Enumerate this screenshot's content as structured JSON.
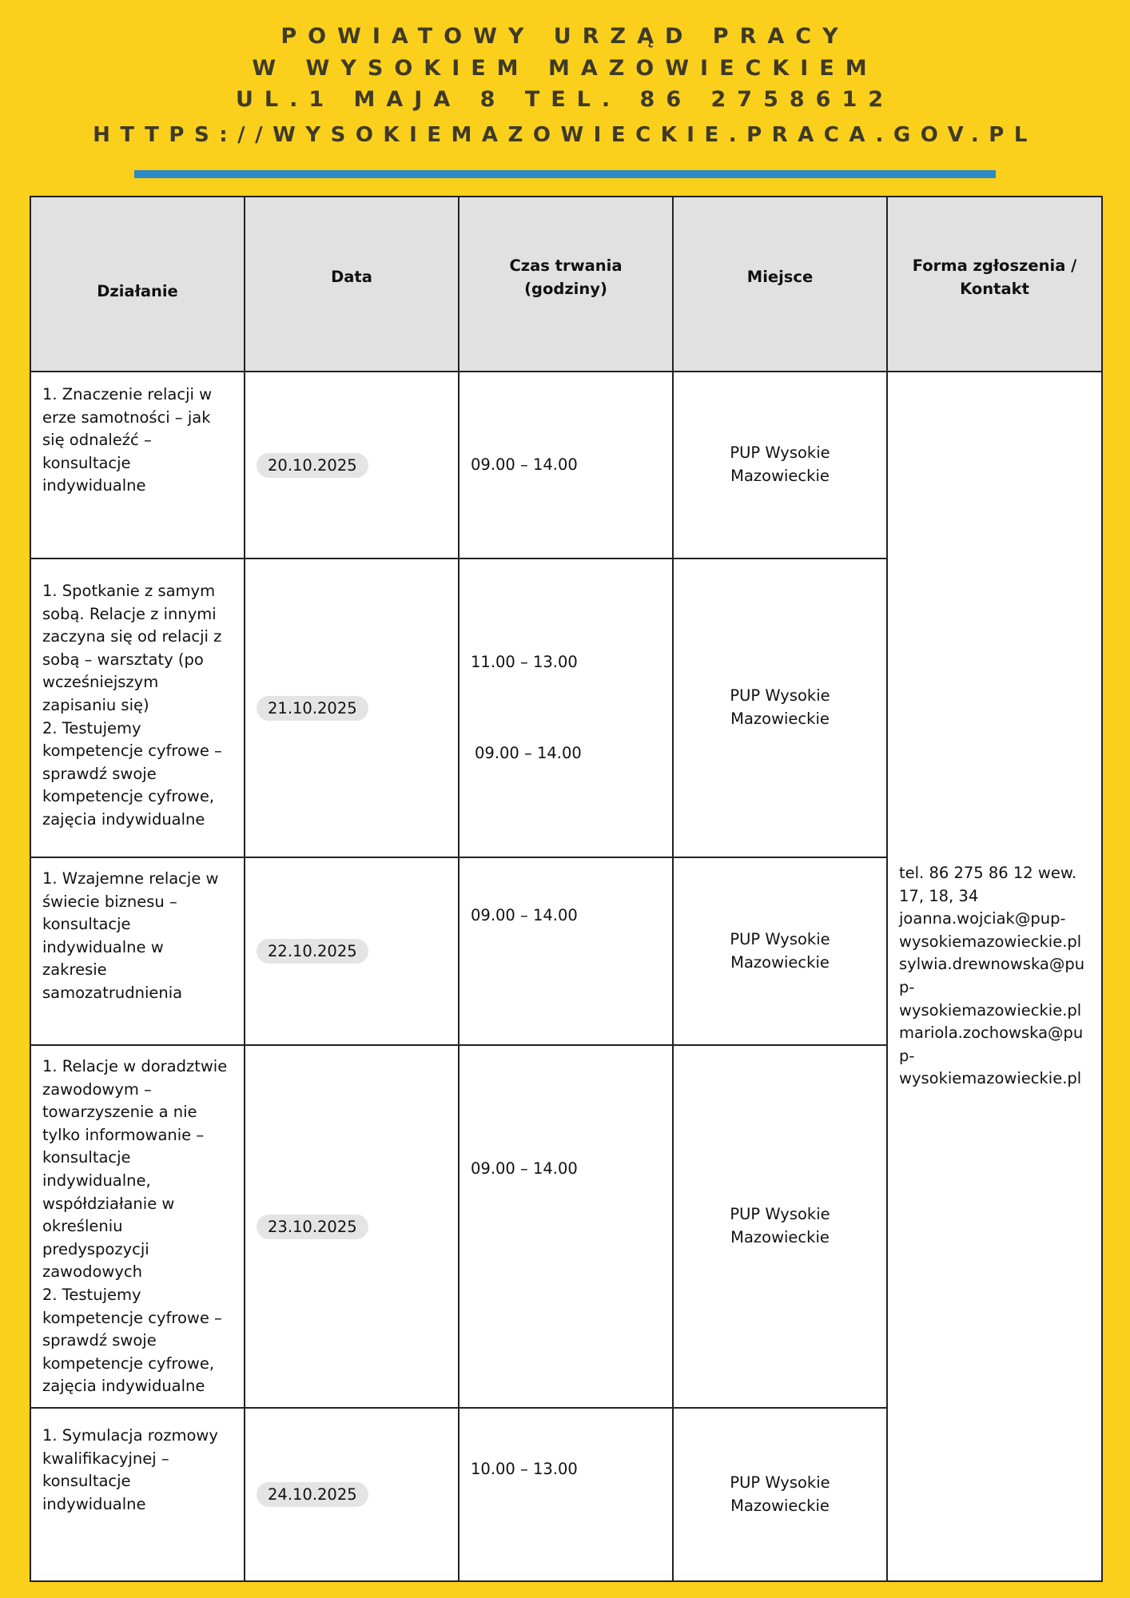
{
  "header": {
    "line1": "POWIATOWY URZĄD PRACY",
    "line2": "W WYSOKIEM MAZOWIECKIEM",
    "line3": "UL.1 MAJA 8 TEL. 86 2758612",
    "line4": "HTTPS://WYSOKIEMAZOWIECKIE.PRACA.GOV.PL"
  },
  "colors": {
    "background": "#fbd01c",
    "accent_bar": "#2b8ac7",
    "header_cell": "#e1e1e1"
  },
  "table": {
    "columns": [
      "Działanie",
      "Data",
      "Czas trwania\n(godziny)",
      "Miejsce",
      "Forma zgłoszenia /\nKontakt"
    ],
    "contact": "tel. 86 275 86 12 wew.\n17, 18, 34\njoanna.wojciak@pup-\nwysokiemazowieckie.pl\nsylwia.drewnowska@pu\np-\nwysokiemazowieckie.pl\nmariola.zochowska@pu\np-\nwysokiemazowieckie.pl",
    "rows": [
      {
        "action": "1. Znaczenie relacji w\nerze samotności – jak\nsię odnaleźć –\nkonsultacje\nindywidualne",
        "date": "20.10.2025",
        "time": "09.00 – 14.00",
        "time2": "",
        "place": "PUP Wysokie\nMazowieckie"
      },
      {
        "action": "1. Spotkanie z samym\nsobą. Relacje z innymi\nzaczyna się od relacji z\nsobą – warsztaty (po\nwcześniejszym\nzapisaniu się)\n2. Testujemy\nkompetencje cyfrowe –\nsprawdź swoje\nkompetencje cyfrowe,\nzajęcia indywidualne",
        "date": "21.10.2025",
        "time": "11.00 – 13.00",
        "time2": "09.00 – 14.00",
        "place": "PUP Wysokie\nMazowieckie"
      },
      {
        "action": "1. Wzajemne relacje w\nświecie biznesu –\nkonsultacje\nindywidualne w\nzakresie\nsamozatrudnienia",
        "date": "22.10.2025",
        "time": "09.00 – 14.00",
        "time2": "",
        "place": "PUP Wysokie\nMazowieckie"
      },
      {
        "action": "1. Relacje w doradztwie\nzawodowym –\ntowarzyszenie a nie\ntylko informowanie –\nkonsultacje\nindywidualne,\nwspółdziałanie w\nokreśleniu\npredyspozycji\nzawodowych\n 2. Testujemy\nkompetencje cyfrowe –\nsprawdź swoje\nkompetencje cyfrowe,\nzajęcia indywidualne",
        "date": "23.10.2025",
        "time": "09.00 – 14.00",
        "time2": "",
        "place": "PUP Wysokie\nMazowieckie"
      },
      {
        "action": "1. Symulacja rozmowy\nkwalifikacyjnej –\nkonsultacje\nindywidualne",
        "date": "24.10.2025",
        "time": "10.00 – 13.00",
        "time2": "",
        "place": "PUP Wysokie\nMazowieckie"
      }
    ]
  }
}
